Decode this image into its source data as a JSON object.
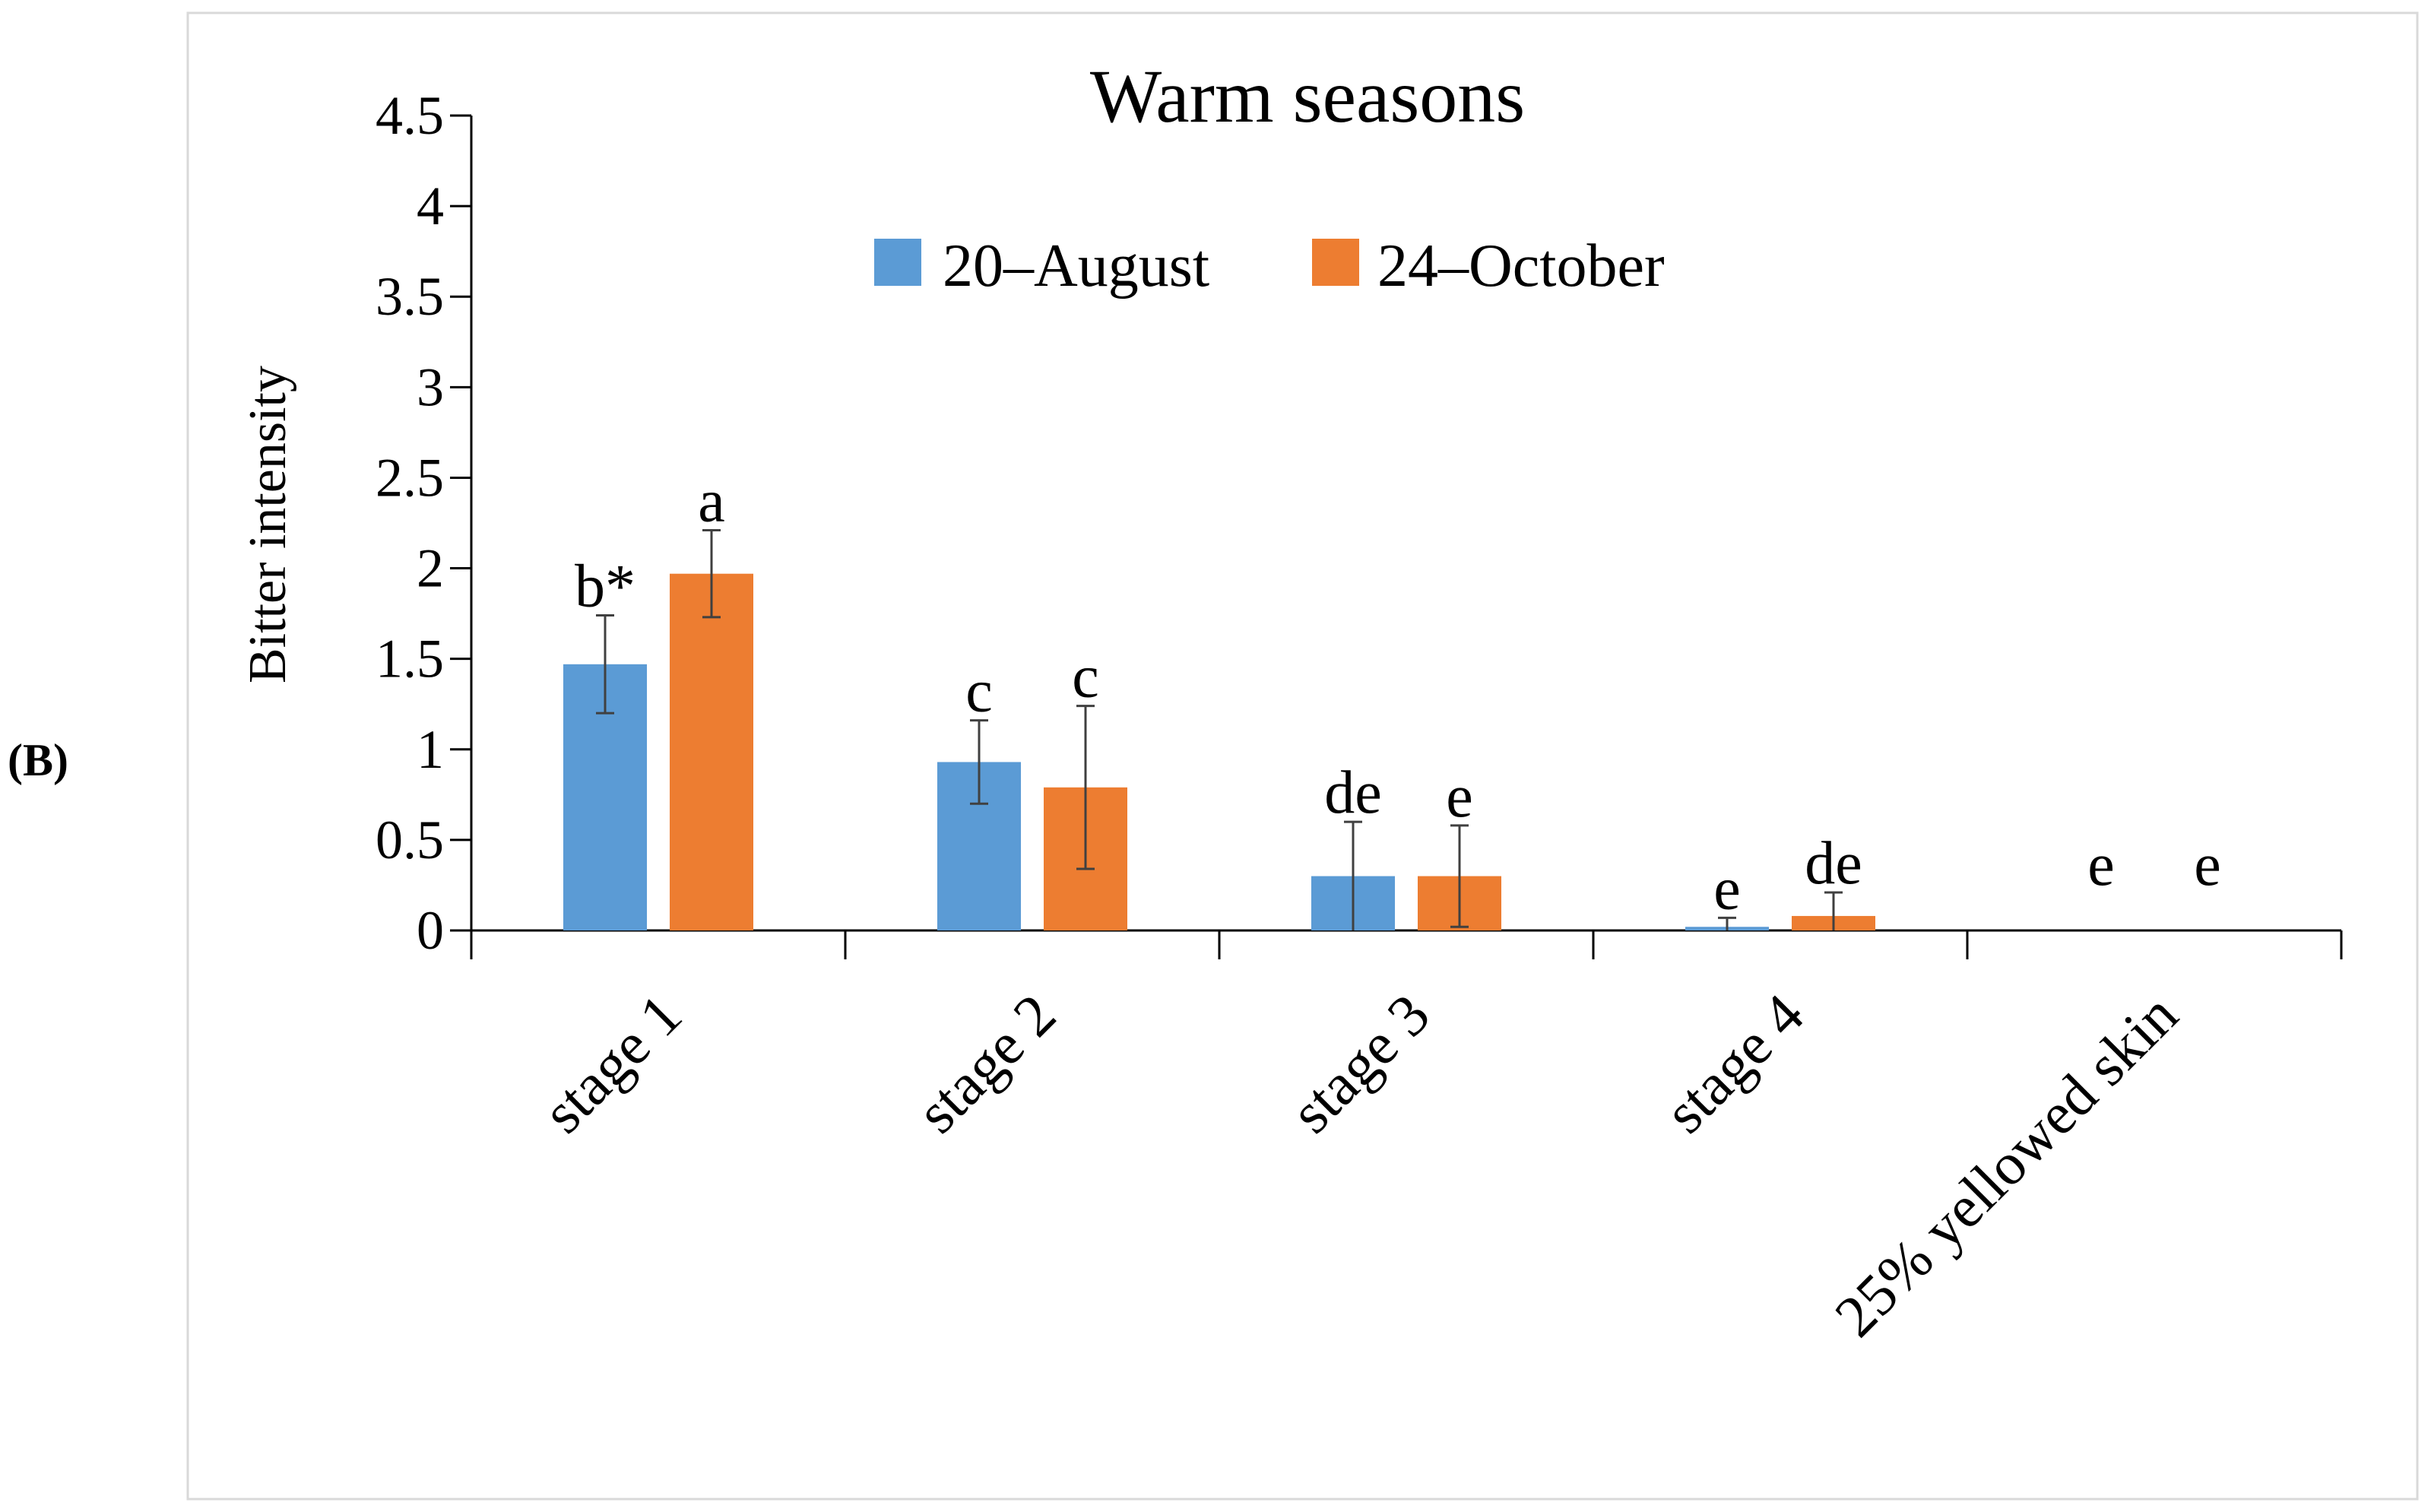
{
  "panel_label": "(B)",
  "chart_data": {
    "type": "bar",
    "title": "Warm seasons",
    "xlabel": "",
    "ylabel": "Bitter intensity",
    "ylim": [
      0,
      4.5
    ],
    "yticks": [
      "0",
      "0.5",
      "1",
      "1.5",
      "2",
      "2.5",
      "3",
      "3.5",
      "4",
      "4.5"
    ],
    "categories": [
      "stage 1",
      "stage 2",
      "stage 3",
      "stage 4",
      "25% yellowed skin"
    ],
    "legend_position": "top",
    "series": [
      {
        "name": "20–August",
        "color": "#5b9bd5",
        "values": [
          1.47,
          0.93,
          0.3,
          0.02,
          0
        ],
        "errors": [
          0.27,
          0.23,
          0.3,
          0.05,
          0
        ],
        "labels": [
          "b*",
          "c",
          "de",
          "e",
          "e"
        ]
      },
      {
        "name": "24–October",
        "color": "#ed7d31",
        "values": [
          1.97,
          0.79,
          0.3,
          0.08,
          0
        ],
        "errors": [
          0.24,
          0.45,
          0.28,
          0.13,
          0
        ],
        "labels": [
          "a",
          "c",
          "e",
          "de",
          "e"
        ]
      }
    ]
  }
}
